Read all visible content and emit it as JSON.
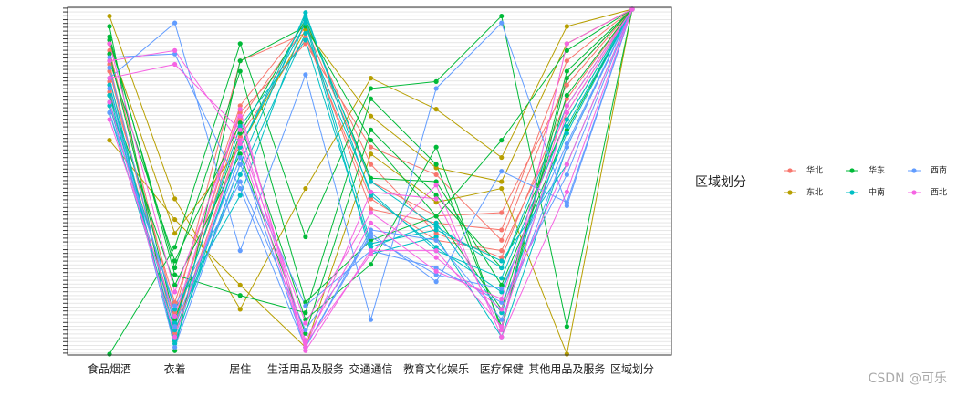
{
  "chart_data": {
    "type": "parallel",
    "categories": [
      "食品烟酒",
      "衣着",
      "居住",
      "生活用品及服务",
      "交通通信",
      "教育文化娱乐",
      "医疗保健",
      "其他用品及服务",
      "区域划分"
    ],
    "ylim": [
      0,
      1
    ],
    "legend_title": "区域划分",
    "series": [
      {
        "name": "华北",
        "color": "#F8766D",
        "lines": [
          [
            0.88,
            0.12,
            0.85,
            0.93,
            0.42,
            0.38,
            0.36,
            0.85,
            1
          ],
          [
            0.82,
            0.08,
            0.68,
            0.95,
            0.5,
            0.4,
            0.41,
            0.78,
            1
          ],
          [
            0.76,
            0.1,
            0.7,
            0.9,
            0.6,
            0.52,
            0.33,
            0.8,
            1
          ],
          [
            0.79,
            0.15,
            0.72,
            0.96,
            0.55,
            0.35,
            0.28,
            0.74,
            1
          ],
          [
            0.84,
            0.06,
            0.63,
            0.92,
            0.45,
            0.33,
            0.3,
            0.7,
            1
          ]
        ]
      },
      {
        "name": "东北",
        "color": "#B79F00",
        "lines": [
          [
            0.98,
            0.45,
            0.13,
            0.48,
            0.8,
            0.71,
            0.57,
            0.95,
            1
          ],
          [
            0.62,
            0.39,
            0.2,
            0.02,
            0.58,
            0.44,
            0.48,
            0,
            1
          ],
          [
            0.9,
            0.35,
            0.6,
            0.94,
            0.69,
            0.54,
            0.5,
            0.9,
            1
          ]
        ]
      },
      {
        "name": "华东",
        "color": "#00BA38",
        "lines": [
          [
            0,
            0.31,
            0.9,
            0.34,
            0.77,
            0.79,
            0.98,
            0.08,
            1
          ],
          [
            0.92,
            0.23,
            0.17,
            0.12,
            0.74,
            0.55,
            0.08,
            0.82,
            1
          ],
          [
            0.95,
            0.01,
            0.85,
            0.95,
            0.62,
            0.4,
            0.62,
            0.88,
            1
          ],
          [
            0.85,
            0.27,
            0.67,
            0.1,
            0.26,
            0.6,
            0.07,
            0.8,
            1
          ],
          [
            0.87,
            0.1,
            0.64,
            0.97,
            0.51,
            0.5,
            0.2,
            0.65,
            1
          ],
          [
            0.91,
            0.25,
            0.82,
            0.15,
            0.33,
            0.4,
            0.13,
            0.75,
            1
          ],
          [
            0.75,
            0.2,
            0.58,
            0.06,
            0.65,
            0.46,
            0.25,
            0.68,
            1
          ]
        ]
      },
      {
        "name": "中南",
        "color": "#00BFC4",
        "lines": [
          [
            0.75,
            0.05,
            0.6,
            0.98,
            0.5,
            0.37,
            0.25,
            0.72,
            1
          ],
          [
            0.7,
            0.07,
            0.52,
            0.93,
            0.47,
            0.3,
            0.22,
            0.68,
            1
          ],
          [
            0.78,
            0.04,
            0.55,
            0.99,
            0.46,
            0.31,
            0.18,
            0.64,
            1
          ],
          [
            0.73,
            0.13,
            0.46,
            0.97,
            0.32,
            0.36,
            0.27,
            0.55,
            1
          ],
          [
            0.8,
            0.03,
            0.6,
            0.96,
            0.29,
            0.34,
            0.05,
            0.6,
            1
          ],
          [
            0.72,
            0.09,
            0.66,
            0.91,
            0.31,
            0.38,
            0.12,
            0.66,
            1
          ]
        ]
      },
      {
        "name": "西南",
        "color": "#619CFF",
        "lines": [
          [
            0.8,
            0.96,
            0.3,
            0.81,
            0.1,
            0.77,
            0.96,
            0.43,
            1
          ],
          [
            0.86,
            0.87,
            0.48,
            0.02,
            0.35,
            0.21,
            0.53,
            0.44,
            1
          ],
          [
            0.77,
            0.02,
            0.55,
            0.14,
            0.3,
            0.25,
            0.15,
            0.52,
            1
          ],
          [
            0.83,
            0.08,
            0.57,
            0.02,
            0.36,
            0.33,
            0.1,
            0.6,
            1
          ],
          [
            0.7,
            0.14,
            0.5,
            0.07,
            0.34,
            0.23,
            0.19,
            0.61,
            1
          ]
        ]
      },
      {
        "name": "西北",
        "color": "#F564E3",
        "lines": [
          [
            0.85,
            0.88,
            0.61,
            0.02,
            0.47,
            0.45,
            0.07,
            0.9,
            1
          ],
          [
            0.8,
            0.84,
            0.65,
            0.03,
            0.29,
            0.49,
            0.05,
            0.47,
            1
          ],
          [
            0.68,
            0.11,
            0.71,
            0.01,
            0.3,
            0.3,
            0.08,
            0.7,
            1
          ],
          [
            0.9,
            0.18,
            0.69,
            0.04,
            0.38,
            0.24,
            0.16,
            0.72,
            1
          ],
          [
            0.73,
            0.05,
            0.62,
            0.09,
            0.41,
            0.28,
            0.13,
            0.55,
            1
          ]
        ]
      }
    ]
  },
  "watermark": "CSDN @可乐"
}
